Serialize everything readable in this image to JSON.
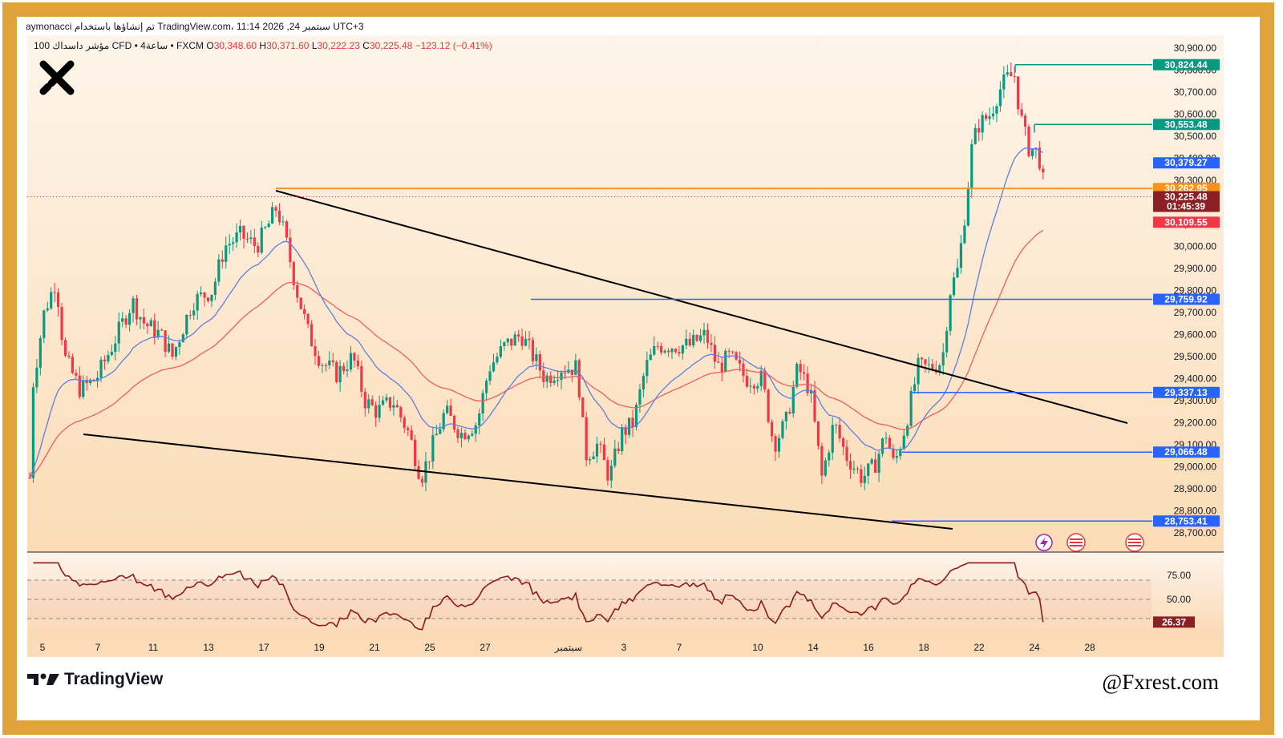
{
  "header": {
    "line1": "aymonacci تم إنشاؤها باستخدام TradingView.com، 11:14 2026 ,24 سبتمبر UTC+3",
    "symbol": "100 مؤشر داسداك CFD • 4ساعة • FXCM",
    "o_label": "O",
    "o": "30,348.60",
    "h_label": "H",
    "h": "30,371.60",
    "l_label": "L",
    "l": "30,222.23",
    "c_label": "C",
    "c": "30,225.48",
    "change": "−123.12 (−0.41%)"
  },
  "branding": {
    "tv_logo_text": "TradingView",
    "watermark": "@Fxrest.com"
  },
  "colors": {
    "frame": "#e2a33d",
    "bg_top": "#fdf3e3",
    "bg_bottom": "#fbdcb5",
    "up": "#089981",
    "down": "#f23645",
    "ema_fast": "#5b7fe8",
    "ema_slow": "#ee5f61",
    "blue_level": "#2962ff",
    "green_level": "#089981",
    "orange_level": "#f7931a",
    "rsi": "#8b1a1a"
  },
  "chart_data": {
    "type": "candlestick",
    "y_ticks": [
      "30,900.00",
      "30,800.00",
      "30,700.00",
      "30,600.00",
      "30,500.00",
      "30,400.00",
      "30,300.00",
      "30,200.00",
      "30,100.00",
      "30,000.00",
      "29,900.00",
      "29,800.00",
      "29,700.00",
      "29,600.00",
      "29,500.00",
      "29,400.00",
      "29,300.00",
      "29,200.00",
      "29,100.00",
      "29,000.00",
      "28,900.00",
      "28,800.00",
      "28,700.00"
    ],
    "ylim": [
      28690,
      30960
    ],
    "x_ticks": [
      "5",
      "7",
      "11",
      "13",
      "17",
      "19",
      "21",
      "25",
      "27",
      "سبتمبر",
      "3",
      "7",
      "10",
      "14",
      "16",
      "18",
      "22",
      "24",
      "28"
    ],
    "price_tags": [
      {
        "value": 30824.44,
        "label": "30,824.44",
        "kind": "green"
      },
      {
        "value": 30553.48,
        "label": "30,553.48",
        "kind": "green"
      },
      {
        "value": 30379.27,
        "label": "30,379.27",
        "kind": "blue"
      },
      {
        "value": 30262.95,
        "label": "30,262.95",
        "kind": "orange"
      },
      {
        "value": 30225.48,
        "label": "30,225.48",
        "countdown": "01:45:39",
        "kind": "current"
      },
      {
        "value": 30109.55,
        "label": "30,109.55",
        "kind": "red"
      },
      {
        "value": 29759.92,
        "label": "29,759.92",
        "kind": "blue"
      },
      {
        "value": 29337.13,
        "label": "29,337.13",
        "kind": "blue"
      },
      {
        "value": 29066.48,
        "label": "29,066.48",
        "kind": "blue"
      },
      {
        "value": 28753.41,
        "label": "28,753.41",
        "kind": "blue"
      }
    ],
    "rsi": {
      "ticks": [
        "75.00",
        "50.00"
      ],
      "current": "26.37",
      "ylim": [
        15,
        90
      ]
    }
  }
}
